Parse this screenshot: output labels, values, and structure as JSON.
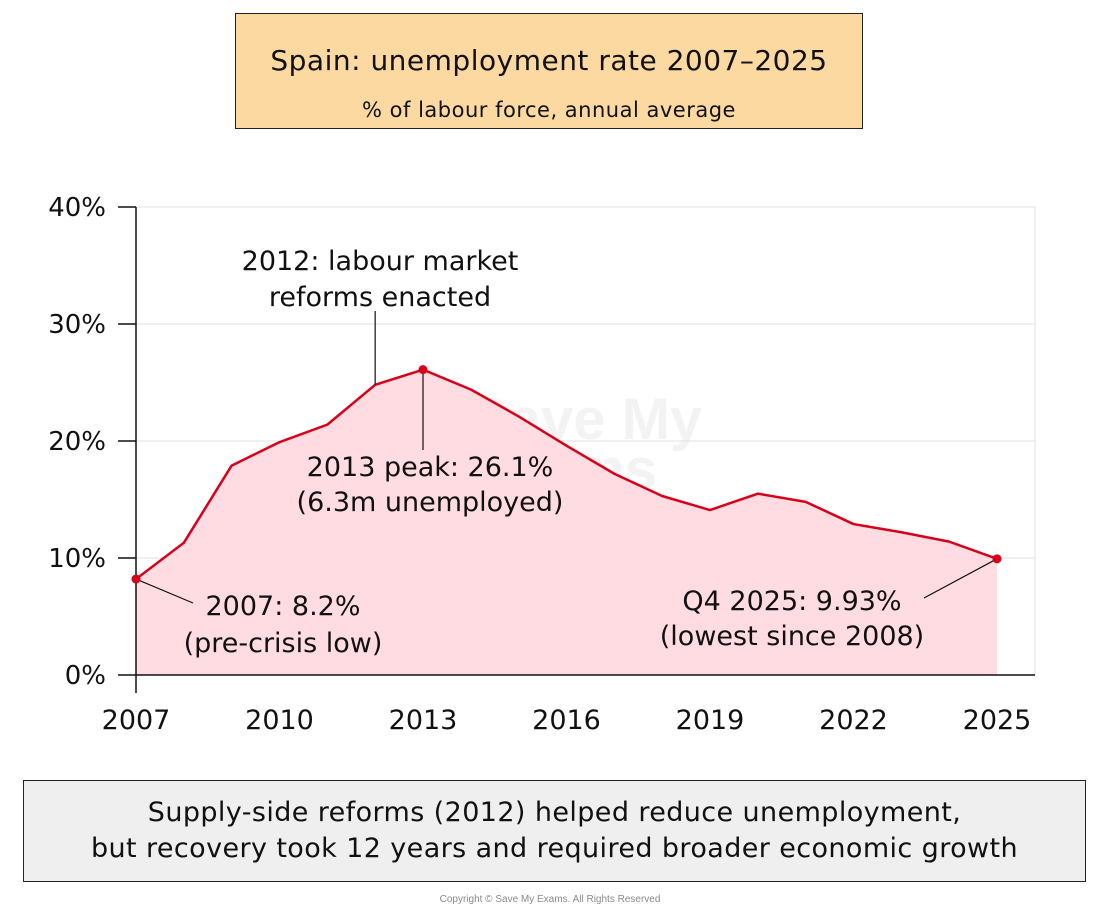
{
  "title": "Spain: unemployment rate 2007–2025",
  "subtitle": "% of labour force, annual average",
  "colors": {
    "line": "#d7001a",
    "area": "#ffdbe2",
    "title_bg": "#fbd9a0",
    "footer_bg": "#efefef"
  },
  "chart_data": {
    "type": "area",
    "x": [
      2007,
      2008,
      2009,
      2010,
      2011,
      2012,
      2013,
      2014,
      2015,
      2016,
      2017,
      2018,
      2019,
      2020,
      2021,
      2022,
      2023,
      2024,
      2025
    ],
    "values": [
      8.2,
      11.3,
      17.9,
      19.9,
      21.4,
      24.8,
      26.1,
      24.4,
      22.1,
      19.6,
      17.2,
      15.3,
      14.1,
      15.5,
      14.8,
      12.9,
      12.2,
      11.4,
      9.93
    ],
    "xlim": [
      2007,
      2025
    ],
    "ylim": [
      0,
      40
    ],
    "x_ticks": [
      2007,
      2010,
      2013,
      2016,
      2019,
      2022,
      2025
    ],
    "y_ticks": [
      "0%",
      "10%",
      "20%",
      "30%",
      "40%"
    ],
    "grid": true,
    "annotations": [
      {
        "x": 2007,
        "y": 8.2,
        "line1": "2007: 8.2%",
        "line2": "(pre-crisis low)"
      },
      {
        "x": 2013,
        "y": 26.1,
        "line1": "2013 peak: 26.1%",
        "line2": "(6.3m unemployed)"
      },
      {
        "x": 2025,
        "y": 9.93,
        "line1": "Q4 2025: 9.93%",
        "line2": "(lowest since 2008)"
      },
      {
        "x": 2012,
        "y": 24.8,
        "line1": "2012: labour market",
        "line2": "reforms enacted"
      }
    ]
  },
  "footer": {
    "line1": "Supply-side reforms (2012) helped reduce unemployment,",
    "line2": "but recovery took 12 years and required broader economic growth"
  },
  "watermark": {
    "line1": "Save My",
    "line2": "Exams"
  },
  "copyright": "Copyright © Save My Exams. All Rights Reserved"
}
